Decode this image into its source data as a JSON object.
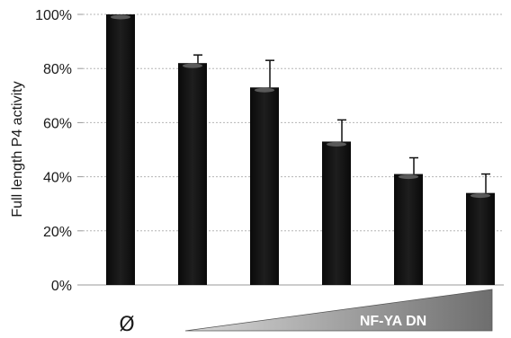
{
  "chart_data": {
    "type": "bar",
    "title": "",
    "xlabel": "",
    "ylabel": "Full length P4 activity",
    "ylim": [
      0,
      100
    ],
    "yticks": [
      0,
      20,
      40,
      60,
      80,
      100
    ],
    "ytick_labels": [
      "0%",
      "20%",
      "40%",
      "60%",
      "80%",
      "100%"
    ],
    "grid": "horizontal dotted",
    "legend": "none",
    "categories": [
      "Ø",
      "",
      "",
      "",
      "",
      ""
    ],
    "series": [
      {
        "values": [
          100,
          82,
          73,
          53,
          41,
          34
        ],
        "errors": [
          0,
          3,
          10,
          8,
          6,
          7
        ],
        "color": "#141414"
      }
    ],
    "annotations": {
      "control_label": "Ø",
      "ramp_label": "NF-YA DN"
    }
  }
}
